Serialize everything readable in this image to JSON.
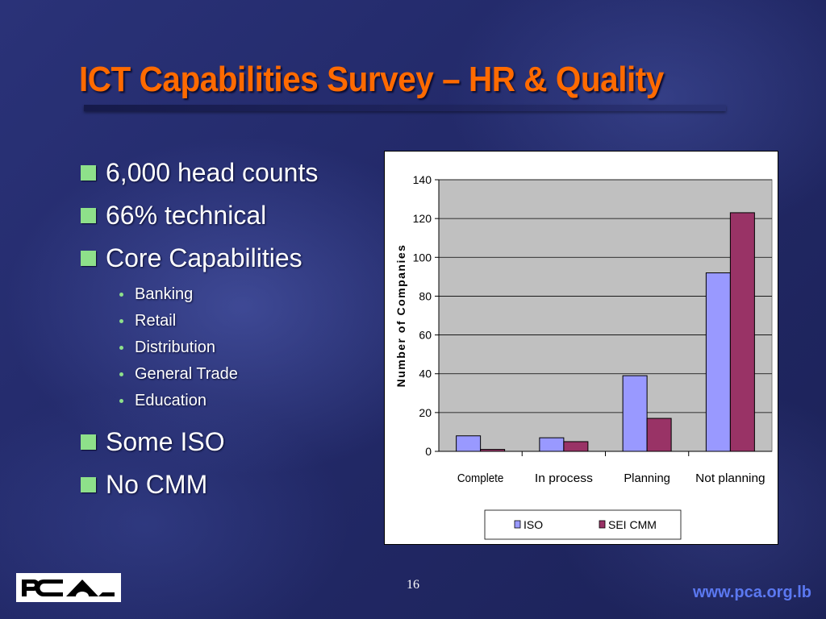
{
  "slide": {
    "title": "ICT Capabilities Survey – HR & Quality",
    "page_number": "16",
    "url": "www.pca.org.lb",
    "logo_text": "PCA"
  },
  "bullets": [
    {
      "text": "6,000 head counts"
    },
    {
      "text": "66% technical"
    },
    {
      "text": "Core Capabilities",
      "subitems": [
        "Banking",
        "Retail",
        "Distribution",
        "General Trade",
        "Education"
      ]
    },
    {
      "text": "Some ISO"
    },
    {
      "text": "No CMM"
    }
  ],
  "colors": {
    "title": "#ff6a00",
    "bullet": "#8ee08a",
    "iso": "#9999ff",
    "sei_cmm": "#993366",
    "plot_bg": "#c0c0c0",
    "url": "#5b78f0"
  },
  "chart_data": {
    "type": "bar",
    "categories": [
      "Complete",
      "In process",
      "Planning",
      "Not planning"
    ],
    "series": [
      {
        "name": "ISO",
        "values": [
          8,
          7,
          39,
          92
        ]
      },
      {
        "name": "SEI CMM",
        "values": [
          1,
          5,
          17,
          123
        ]
      }
    ],
    "xlabel": "",
    "ylabel": "Number of Companies",
    "ylim": [
      0,
      140
    ],
    "yticks": [
      "0",
      "20",
      "40",
      "60",
      "80",
      "100",
      "120",
      "140"
    ],
    "grid": true,
    "legend": "bottom"
  }
}
